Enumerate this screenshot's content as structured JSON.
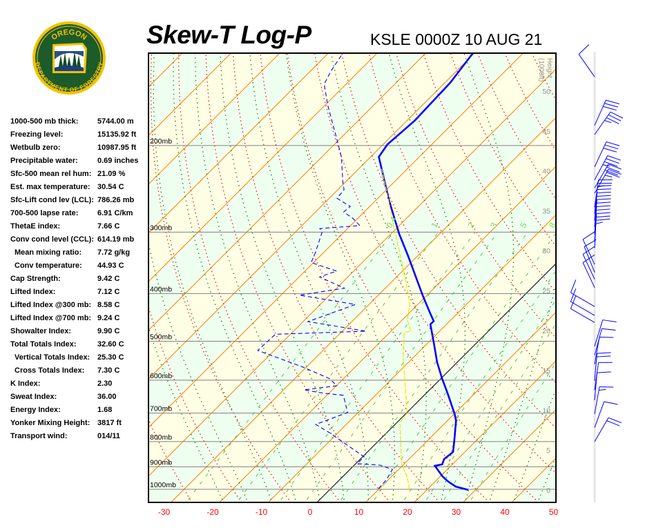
{
  "logo": {
    "top_text": "OREGON",
    "bottom_text": "DEPARTMENT OF FORESTRY",
    "colors": {
      "ring": "#f2c200",
      "field": "#1d5b2a"
    }
  },
  "title": "Skew-T Log-P",
  "subtitle": "KSLE 0000Z 10 AUG 21",
  "stats": [
    {
      "label": "1000-500 mb thick:",
      "value": "5744.00 m"
    },
    {
      "label": "Freezing level:",
      "value": "15135.92 ft"
    },
    {
      "label": "Wetbulb zero:",
      "value": "10987.95 ft"
    },
    {
      "label": "Precipitable water:",
      "value": "0.69 inches"
    },
    {
      "label": "Sfc-500 mean rel hum:",
      "value": "21.09 %"
    },
    {
      "label": "Est. max temperature:",
      "value": "30.54 C"
    },
    {
      "label": "Sfc-Lift cond lev (LCL):",
      "value": "786.26 mb"
    },
    {
      "label": "700-500 lapse rate:",
      "value": "6.91 C/km"
    },
    {
      "label": "ThetaE index:",
      "value": "7.66 C"
    },
    {
      "label": "Conv cond level (CCL):",
      "value": "614.19 mb"
    },
    {
      "label": "Mean mixing ratio:",
      "value": "7.72 g/kg",
      "indent": true
    },
    {
      "label": "Conv temperature:",
      "value": "44.93 C",
      "indent": true
    },
    {
      "label": "Cap Strength:",
      "value": "9.42 C"
    },
    {
      "label": "Lifted Index:",
      "value": "7.12 C"
    },
    {
      "label": "Lifted Index @300 mb:",
      "value": "8.58 C"
    },
    {
      "label": "Lifted Index @700 mb:",
      "value": "9.24 C"
    },
    {
      "label": "Showalter Index:",
      "value": "9.90 C"
    },
    {
      "label": "Total Totals Index:",
      "value": "32.60 C"
    },
    {
      "label": "Vertical Totals Index:",
      "value": "25.30 C",
      "indent": true
    },
    {
      "label": "Cross Totals Index:",
      "value": "7.30 C",
      "indent": true
    },
    {
      "label": "K Index:",
      "value": "2.30"
    },
    {
      "label": "Sweat Index:",
      "value": "36.00"
    },
    {
      "label": "Energy Index:",
      "value": "1.68"
    },
    {
      "label": "Yonker Mixing Height:",
      "value": "3817 ft"
    },
    {
      "label": "Transport wind:",
      "value": "014/11"
    }
  ],
  "chart_data": {
    "type": "line",
    "subtype": "skew-t log-p",
    "x_axis": {
      "unit": "C",
      "ticks": [
        -30,
        -20,
        -10,
        0,
        10,
        20,
        30,
        40,
        50
      ],
      "range": [
        -30,
        50
      ]
    },
    "y_axis": {
      "scale": "log",
      "unit": "mb",
      "range": [
        1000,
        130
      ],
      "pressure_levels": [
        1000,
        900,
        800,
        700,
        600,
        500,
        400,
        300,
        200
      ],
      "pressure_labels": [
        "1000mb",
        "900mb",
        "800mb",
        "700mb",
        "600mb",
        "500mb",
        "400mb",
        "300mb",
        "200mb"
      ]
    },
    "height_axis": {
      "label": "Height",
      "unit_label": "(1000ft)",
      "ticks": [
        0,
        5,
        10,
        15,
        20,
        25,
        30,
        35,
        40,
        45,
        50
      ]
    },
    "mixing_ratio_labels": [
      "0.4",
      "1",
      "2",
      "3",
      "5",
      "8"
    ],
    "mixing_ratio_lines": [
      0.4,
      1,
      2,
      3,
      5,
      8,
      12,
      16,
      20,
      28
    ],
    "series": [
      {
        "role": "temperature",
        "color": "#0000ff",
        "style": "solid-thick",
        "points": [
          [
            1003,
            28.5
          ],
          [
            987,
            25.2
          ],
          [
            962,
            22.4
          ],
          [
            940,
            20.3
          ],
          [
            896,
            16.7
          ],
          [
            890,
            17.9
          ],
          [
            868,
            17.2
          ],
          [
            840,
            17.6
          ],
          [
            800,
            15.7
          ],
          [
            726,
            11.8
          ],
          [
            703,
            10.1
          ],
          [
            638,
            4.4
          ],
          [
            594,
            0.1
          ],
          [
            552,
            -4.1
          ],
          [
            498,
            -9.4
          ],
          [
            462,
            -13.3
          ],
          [
            455,
            -13.3
          ],
          [
            436,
            -16.0
          ],
          [
            403,
            -20.9
          ],
          [
            366,
            -26.7
          ],
          [
            334,
            -32.2
          ],
          [
            303,
            -38.2
          ],
          [
            258,
            -47.4
          ],
          [
            223,
            -55.3
          ],
          [
            211,
            -58.3
          ],
          [
            199,
            -59.1
          ],
          [
            178,
            -58.4
          ],
          [
            149,
            -58.9
          ],
          [
            130,
            -60.3
          ]
        ]
      },
      {
        "role": "dewpoint",
        "color": "#0000ff",
        "style": "dashed",
        "points": [
          [
            997,
            9.8
          ],
          [
            956,
            9.6
          ],
          [
            911,
            8.7
          ],
          [
            893,
            5.2
          ],
          [
            887,
            0.3
          ],
          [
            859,
            0.3
          ],
          [
            767,
            -11.8
          ],
          [
            738,
            -16.3
          ],
          [
            698,
            -12.2
          ],
          [
            644,
            -16.6
          ],
          [
            638,
            -20.9
          ],
          [
            628,
            -25.8
          ],
          [
            616,
            -19.9
          ],
          [
            596,
            -22.8
          ],
          [
            564,
            -30.8
          ],
          [
            522,
            -43.4
          ],
          [
            484,
            -43.1
          ],
          [
            477,
            -25.1
          ],
          [
            456,
            -39.0
          ],
          [
            421,
            -32.8
          ],
          [
            403,
            -46.2
          ],
          [
            390,
            -38.4
          ],
          [
            370,
            -45.8
          ],
          [
            360,
            -43.5
          ],
          [
            346,
            -50.5
          ],
          [
            331,
            -51.6
          ],
          [
            300,
            -54.5
          ],
          [
            295,
            -55.7
          ],
          [
            291,
            -48.1
          ],
          [
            281,
            -51.1
          ],
          [
            273,
            -54.2
          ],
          [
            266,
            -54.0
          ],
          [
            256,
            -58.4
          ],
          [
            246,
            -58.7
          ],
          [
            237,
            -60.6
          ],
          [
            211,
            -66.0
          ],
          [
            193,
            -70.9
          ],
          [
            166,
            -79.3
          ],
          [
            150,
            -84.5
          ],
          [
            141,
            -85.8
          ],
          [
            130,
            -87.0
          ]
        ]
      },
      {
        "role": "wet-bulb",
        "color": "#e8e800",
        "style": "thin",
        "points": [
          [
            1000,
            16.3
          ],
          [
            947,
            13.5
          ],
          [
            890,
            9.6
          ],
          [
            818,
            5.7
          ],
          [
            733,
            0.7
          ],
          [
            699,
            0.1
          ],
          [
            618,
            -5.7
          ],
          [
            538,
            -12.2
          ],
          [
            480,
            -17.0
          ],
          [
            477,
            -15.9
          ],
          [
            452,
            -19.0
          ],
          [
            419,
            -21.8
          ],
          [
            353,
            -30.8
          ],
          [
            299,
            -39.7
          ],
          [
            258,
            -47.5
          ],
          [
            223,
            -55.3
          ]
        ]
      }
    ],
    "winds": [
      {
        "p": 145,
        "dir": 325,
        "kt": 10
      },
      {
        "p": 182,
        "dir": 24,
        "kt": 30
      },
      {
        "p": 190,
        "dir": 35,
        "kt": 35
      },
      {
        "p": 221,
        "dir": 25,
        "kt": 30
      },
      {
        "p": 235,
        "dir": 28,
        "kt": 35
      },
      {
        "p": 244,
        "dir": 30,
        "kt": 30
      },
      {
        "p": 250,
        "dir": 30,
        "kt": 25
      },
      {
        "p": 267,
        "dir": 8,
        "kt": 25
      },
      {
        "p": 275,
        "dir": 6,
        "kt": 20
      },
      {
        "p": 284,
        "dir": 5,
        "kt": 20
      },
      {
        "p": 293,
        "dir": 5,
        "kt": 20
      },
      {
        "p": 303,
        "dir": 4,
        "kt": 20
      },
      {
        "p": 313,
        "dir": 4,
        "kt": 20
      },
      {
        "p": 323,
        "dir": 3,
        "kt": 15
      },
      {
        "p": 349,
        "dir": 335,
        "kt": 10
      },
      {
        "p": 362,
        "dir": 338,
        "kt": 10
      },
      {
        "p": 374,
        "dir": 335,
        "kt": 10
      },
      {
        "p": 389,
        "dir": 335,
        "kt": 10
      },
      {
        "p": 425,
        "dir": 300,
        "kt": 10
      },
      {
        "p": 443,
        "dir": 300,
        "kt": 10
      },
      {
        "p": 458,
        "dir": 300,
        "kt": 10
      },
      {
        "p": 512,
        "dir": 17,
        "kt": 10
      },
      {
        "p": 534,
        "dir": 15,
        "kt": 10
      },
      {
        "p": 557,
        "dir": 10,
        "kt": 10
      },
      {
        "p": 602,
        "dir": 5,
        "kt": 20
      },
      {
        "p": 628,
        "dir": 8,
        "kt": 10
      },
      {
        "p": 659,
        "dir": 5,
        "kt": 10
      },
      {
        "p": 703,
        "dir": 10,
        "kt": 15
      },
      {
        "p": 749,
        "dir": 20,
        "kt": 10
      },
      {
        "p": 800,
        "dir": 30,
        "kt": 20
      }
    ],
    "colors": {
      "isotherm": "#ff8000",
      "zero_isotherm": "#000000",
      "dry_adiabat": "#ff0000",
      "moist_adiabat": "#008000",
      "mixing_ratio": "#44cc44",
      "band_green": "#efffef",
      "band_yellow": "#ffffe6",
      "tick_label": "#ff0000",
      "height_label": "#909090"
    }
  }
}
